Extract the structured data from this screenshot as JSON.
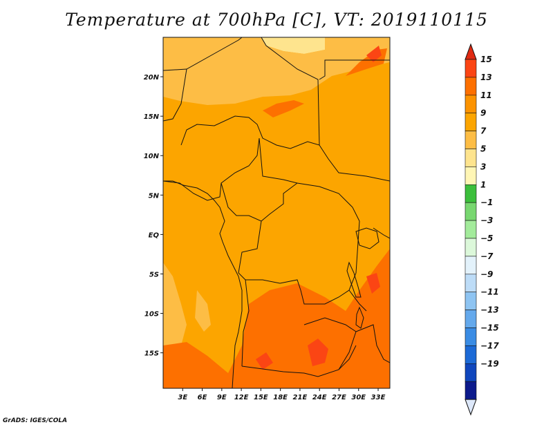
{
  "title": "Temperature at 700hPa [C], VT: 2019110115",
  "credit": "GrADS: IGES/COLA",
  "map": {
    "lon_range": [
      0,
      34.8
    ],
    "lat_range": [
      -19.5,
      25
    ],
    "lon_ticks": [
      {
        "value": 3,
        "label": "3E"
      },
      {
        "value": 6,
        "label": "6E"
      },
      {
        "value": 9,
        "label": "9E"
      },
      {
        "value": 12,
        "label": "12E"
      },
      {
        "value": 15,
        "label": "15E"
      },
      {
        "value": 18,
        "label": "18E"
      },
      {
        "value": 21,
        "label": "21E"
      },
      {
        "value": 24,
        "label": "24E"
      },
      {
        "value": 27,
        "label": "27E"
      },
      {
        "value": 30,
        "label": "30E"
      },
      {
        "value": 33,
        "label": "33E"
      }
    ],
    "lat_ticks": [
      {
        "value": 20,
        "label": "20N"
      },
      {
        "value": 15,
        "label": "15N"
      },
      {
        "value": 10,
        "label": "10N"
      },
      {
        "value": 5,
        "label": "5N"
      },
      {
        "value": 0,
        "label": "EQ"
      },
      {
        "value": -5,
        "label": "5S"
      },
      {
        "value": -10,
        "label": "10S"
      },
      {
        "value": -15,
        "label": "15S"
      }
    ],
    "base_color": "#fca500"
  },
  "colorbar": {
    "levels": [
      "15",
      "13",
      "11",
      "9",
      "7",
      "5",
      "3",
      "1",
      "−1",
      "−3",
      "−5",
      "−7",
      "−9",
      "−11",
      "−13",
      "−15",
      "−17",
      "−19"
    ],
    "colors": [
      "#fb4514",
      "#fd7000",
      "#fc9300",
      "#fca500",
      "#fdbd45",
      "#fee48e",
      "#fff6b5",
      "#3cbf3c",
      "#78d770",
      "#a3eb9b",
      "#dcf8da",
      "#e3f2fb",
      "#bddcf7",
      "#8ec4f2",
      "#64a9ec",
      "#3a8ce4",
      "#1c6ad6",
      "#0f46bd",
      "#0c1a8c"
    ],
    "top_color": "#e02a12",
    "bottom_color": "#dde8fa"
  }
}
